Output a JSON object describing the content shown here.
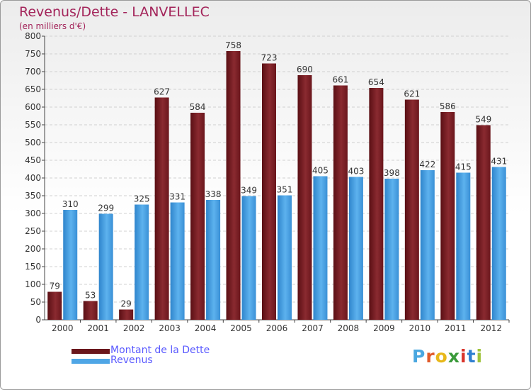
{
  "header": {
    "title": "Revenus/Dette - LANVELLEC",
    "subtitle": "(en milliers d'€)"
  },
  "colors": {
    "debt": "#7a1e24",
    "revenue": "#4fa6e6"
  },
  "chart_data": {
    "type": "bar",
    "title": "Revenus/Dette - LANVELLEC",
    "ylabel": "(en milliers d'€)",
    "xlabel": "",
    "ylim": [
      0,
      800
    ],
    "ytick_step": 50,
    "grid": true,
    "categories": [
      "2000",
      "2001",
      "2002",
      "2003",
      "2004",
      "2005",
      "2006",
      "2007",
      "2008",
      "2009",
      "2010",
      "2011",
      "2012"
    ],
    "series": [
      {
        "name": "Montant de la Dette",
        "values": [
          79,
          53,
          29,
          627,
          584,
          758,
          723,
          690,
          661,
          654,
          621,
          586,
          549
        ]
      },
      {
        "name": "Revenus",
        "values": [
          310,
          299,
          325,
          331,
          338,
          349,
          351,
          405,
          403,
          398,
          422,
          415,
          431
        ]
      }
    ],
    "legend_position": "bottom-left"
  },
  "legend": {
    "items": [
      "Montant de la Dette",
      "Revenus"
    ]
  },
  "logo": {
    "text": "Proxiti"
  }
}
